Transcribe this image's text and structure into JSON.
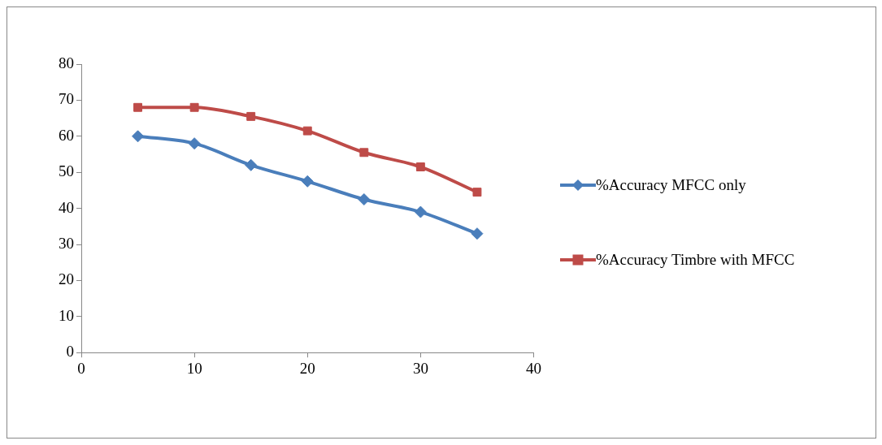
{
  "chart_data": {
    "type": "line",
    "x": [
      5,
      10,
      15,
      20,
      25,
      30,
      35
    ],
    "series": [
      {
        "name": "%Accuracy MFCC only",
        "color": "#4a7ebb",
        "marker": "diamond",
        "values": [
          60,
          58,
          52,
          47.5,
          42.5,
          39,
          33
        ]
      },
      {
        "name": "%Accuracy Timbre with MFCC",
        "color": "#be4b48",
        "marker": "square",
        "values": [
          68,
          68,
          65.5,
          61.5,
          55.5,
          51.5,
          44.5
        ]
      }
    ],
    "xlim": [
      0,
      40
    ],
    "xticks": [
      0,
      10,
      20,
      30,
      40
    ],
    "ylim": [
      0,
      80
    ],
    "yticks": [
      0,
      10,
      20,
      30,
      40,
      50,
      60,
      70,
      80
    ],
    "grid": false,
    "legend": "right"
  }
}
